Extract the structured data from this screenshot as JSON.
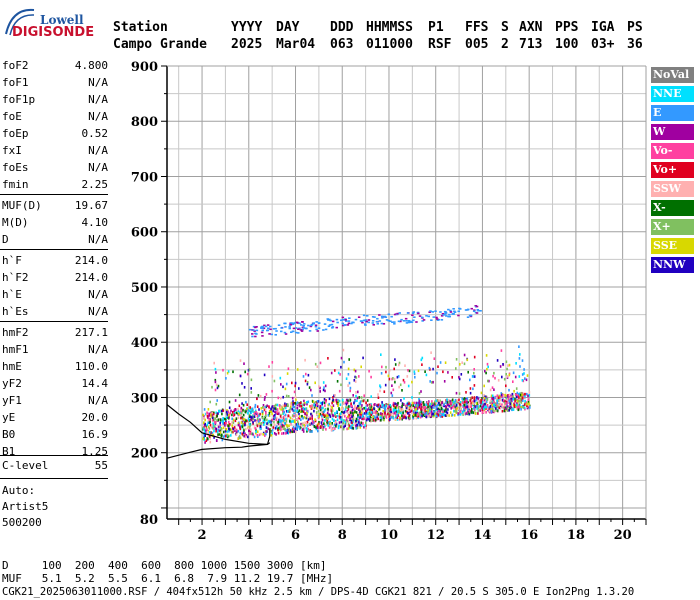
{
  "logo": {
    "line1": "Lowell",
    "line2": "DIGISONDE"
  },
  "header": {
    "labels": [
      "Station",
      "YYYY",
      "DAY",
      "DDD",
      "HHMMSS",
      "P1",
      "FFS",
      "S",
      "AXN",
      "PPS",
      "IGA",
      "PS"
    ],
    "values": [
      "Campo Grande",
      "2025",
      "Mar04",
      "063",
      "011000",
      "RSF",
      "005",
      "2",
      "713",
      "100",
      "03+",
      "36"
    ]
  },
  "params": [
    {
      "name": "foF2",
      "value": "4.800"
    },
    {
      "name": "foF1",
      "value": "N/A"
    },
    {
      "name": "foF1p",
      "value": "N/A"
    },
    {
      "name": "foE",
      "value": "N/A"
    },
    {
      "name": "foEp",
      "value": "0.52"
    },
    {
      "name": "fxI",
      "value": "N/A"
    },
    {
      "name": "foEs",
      "value": "N/A"
    },
    {
      "name": "fmin",
      "value": "2.25"
    },
    {
      "name": "MUF(D)",
      "value": "19.67"
    },
    {
      "name": "M(D)",
      "value": "4.10"
    },
    {
      "name": "D",
      "value": "N/A"
    },
    {
      "name": "h`F",
      "value": "214.0"
    },
    {
      "name": "h`F2",
      "value": "214.0"
    },
    {
      "name": "h`E",
      "value": "N/A"
    },
    {
      "name": "h`Es",
      "value": "N/A"
    },
    {
      "name": "hmF2",
      "value": "217.1"
    },
    {
      "name": "hmF1",
      "value": "N/A"
    },
    {
      "name": "hmE",
      "value": "110.0"
    },
    {
      "name": "yF2",
      "value": "14.4"
    },
    {
      "name": "yF1",
      "value": "N/A"
    },
    {
      "name": "yE",
      "value": "20.0"
    },
    {
      "name": "B0",
      "value": "16.9"
    },
    {
      "name": "B1",
      "value": "1.25"
    },
    {
      "name": "C-level",
      "value": "55"
    }
  ],
  "autoscale": {
    "label": "Auto:",
    "program": "Artist5",
    "version": "500200"
  },
  "legend": [
    {
      "label": "NoVal",
      "bg": "#808080",
      "fg": "#ffffff"
    },
    {
      "label": "NNE",
      "bg": "#00e0ff",
      "fg": "#ffffff"
    },
    {
      "label": "E",
      "bg": "#3399ff",
      "fg": "#ffffff"
    },
    {
      "label": "W",
      "bg": "#a000a0",
      "fg": "#ffffff"
    },
    {
      "label": "Vo-",
      "bg": "#ff40a0",
      "fg": "#ffffff"
    },
    {
      "label": "Vo+",
      "bg": "#e00020",
      "fg": "#ffffff"
    },
    {
      "label": "SSW",
      "bg": "#ffb0b0",
      "fg": "#ffffff"
    },
    {
      "label": "X-",
      "bg": "#007000",
      "fg": "#ffffff"
    },
    {
      "label": "X+",
      "bg": "#80c060",
      "fg": "#ffffff"
    },
    {
      "label": "SSE",
      "bg": "#d8d800",
      "fg": "#ffffff"
    },
    {
      "label": "NNW",
      "bg": "#2000c0",
      "fg": "#ffffff"
    }
  ],
  "footer": {
    "d_row": "D     100  200  400  600  800 1000 1500 3000 [km]",
    "muf_row": "MUF   5.1  5.2  5.5  6.1  6.8  7.9 11.2 19.7 [MHz]",
    "info": "CGK21_2025063011000.RSF / 404fx512h 50 kHz 2.5 km / DPS-4D CGK21 821 / 20.5 S 305.0 E Ion2Png 1.3.20"
  },
  "chart_data": {
    "type": "scatter",
    "title": "",
    "xlabel": "",
    "ylabel": "",
    "xlim": [
      0.5,
      21
    ],
    "ylim": [
      80,
      900
    ],
    "x_ticks": [
      2,
      4,
      6,
      8,
      10,
      12,
      14,
      16,
      18,
      20
    ],
    "y_ticks": [
      80,
      200,
      300,
      400,
      500,
      600,
      700,
      800,
      900
    ],
    "grid": true,
    "legend_placement": "right",
    "trace": {
      "name": "",
      "x": [
        0.5,
        1.0,
        1.5,
        2.0,
        3.0,
        4.0,
        4.8,
        4.9,
        4.9
      ],
      "y": [
        287,
        270,
        255,
        236,
        224,
        217,
        215,
        230,
        244
      ]
    },
    "trace_lower": {
      "x": [
        0.5,
        1.5,
        2.0,
        3.0,
        3.7,
        4.0,
        4.8,
        4.9
      ],
      "y": [
        190,
        201,
        206,
        209,
        210,
        212,
        215,
        218
      ]
    },
    "bands": [
      {
        "x": [
          2.0,
          3.0,
          4.0,
          5.0,
          6.0,
          7.0,
          8.0,
          9.0,
          10.0,
          11.0,
          12.0,
          13.0,
          14.0,
          15.0,
          16.0
        ],
        "y": [
          262,
          268,
          272,
          276,
          281,
          284,
          287,
          289,
          291,
          294,
          297,
          300,
          304,
          308,
          312
        ]
      },
      {
        "x": [
          4.0,
          5.0,
          6.0,
          7.0,
          8.0,
          9.0,
          10.0,
          11.0,
          12.0,
          13.0,
          14.0
        ],
        "y": [
          420,
          424,
          428,
          432,
          437,
          441,
          444,
          447,
          451,
          455,
          460
        ]
      }
    ]
  }
}
